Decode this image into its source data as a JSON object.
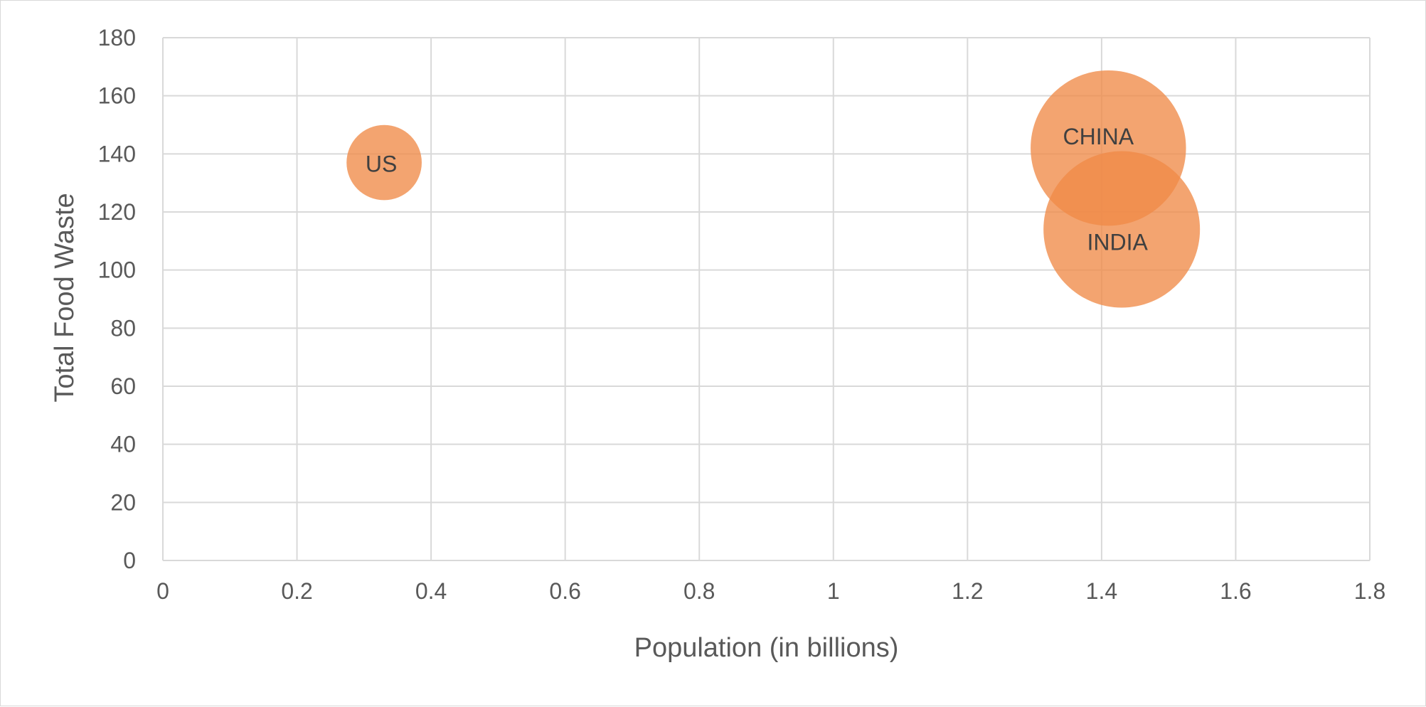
{
  "chart_data": {
    "type": "scatter",
    "subtype": "bubble",
    "title": "",
    "xlabel": "Population (in billions)",
    "ylabel": "Total Food Waste",
    "xlim": [
      0,
      1.8
    ],
    "ylim": [
      0,
      180
    ],
    "x_ticks": [
      "0",
      "0.2",
      "0.4",
      "0.6",
      "0.8",
      "1",
      "1.2",
      "1.4",
      "1.6",
      "1.8"
    ],
    "y_ticks": [
      "0",
      "20",
      "40",
      "60",
      "80",
      "100",
      "120",
      "140",
      "160",
      "180"
    ],
    "grid": true,
    "legend": "none",
    "bubble_color": "#F08A48",
    "points": [
      {
        "label": "US",
        "x": 0.33,
        "y": 137,
        "size": 0.33
      },
      {
        "label": "CHINA",
        "x": 1.41,
        "y": 142,
        "size": 1.41
      },
      {
        "label": "INDIA",
        "x": 1.43,
        "y": 114,
        "size": 1.43
      }
    ]
  }
}
